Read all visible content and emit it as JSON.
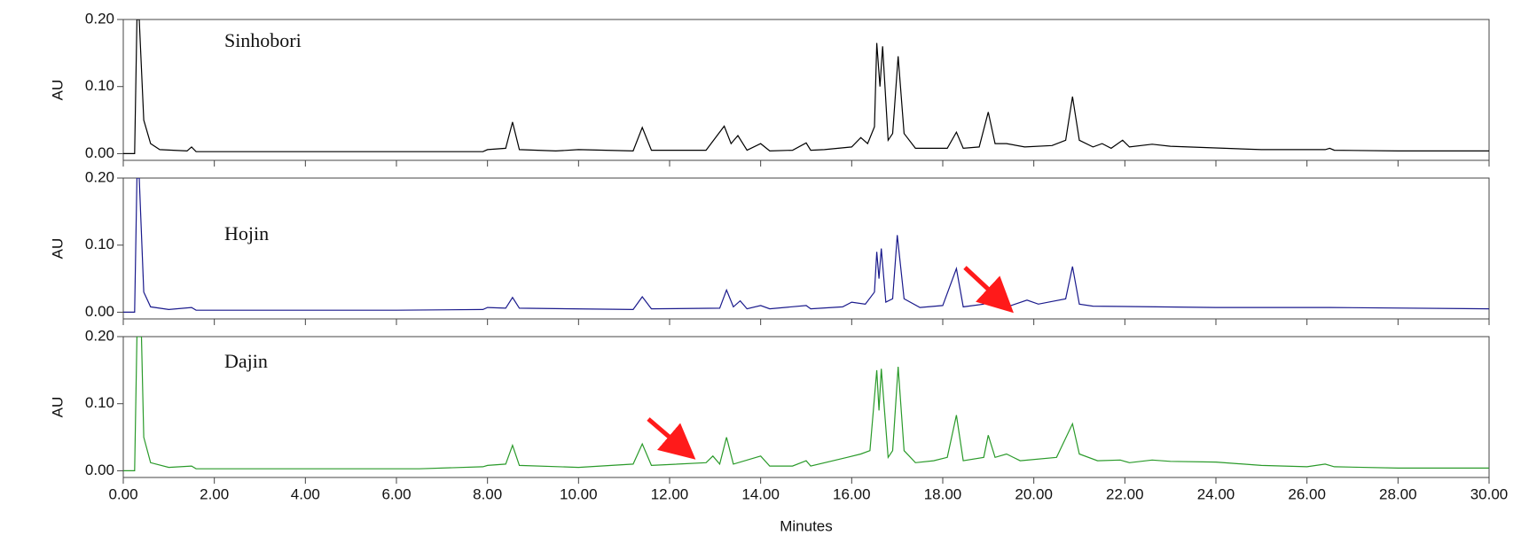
{
  "chart_data": [
    {
      "type": "line",
      "ylabel": "AU",
      "xlim": [
        0,
        30
      ],
      "ylim": [
        -0.01,
        0.2
      ],
      "yticks": [
        {
          "value": 0,
          "label": "0.00"
        },
        {
          "value": 0.1,
          "label": "0.10"
        },
        {
          "value": 0.2,
          "label": "0.20"
        }
      ],
      "x": [
        0,
        0.25,
        0.3,
        0.35,
        0.45,
        0.6,
        0.8,
        1.4,
        1.5,
        1.6,
        7.9,
        8.0,
        8.4,
        8.55,
        8.7,
        9.5,
        10.0,
        11.2,
        11.4,
        11.6,
        12.8,
        13.2,
        13.35,
        13.5,
        13.7,
        14.0,
        14.2,
        14.7,
        15.0,
        15.1,
        15.4,
        16.0,
        16.2,
        16.35,
        16.5,
        16.55,
        16.62,
        16.68,
        16.8,
        16.9,
        17.02,
        17.15,
        17.4,
        18.1,
        18.3,
        18.45,
        18.8,
        19.0,
        19.15,
        19.4,
        19.8,
        20.4,
        20.7,
        20.85,
        21.0,
        21.3,
        21.5,
        21.7,
        21.95,
        22.1,
        22.6,
        23.0,
        25.0,
        26.4,
        26.5,
        26.6,
        28.0,
        30
      ],
      "series": [
        {
          "name": "Sinhobori",
          "color": "#000000",
          "values": [
            0,
            0,
            0.2,
            0.2,
            0.05,
            0.015,
            0.006,
            0.004,
            0.01,
            0.003,
            0.003,
            0.006,
            0.008,
            0.047,
            0.006,
            0.004,
            0.006,
            0.004,
            0.039,
            0.005,
            0.005,
            0.041,
            0.015,
            0.027,
            0.005,
            0.015,
            0.004,
            0.005,
            0.016,
            0.005,
            0.006,
            0.01,
            0.024,
            0.015,
            0.04,
            0.165,
            0.1,
            0.16,
            0.02,
            0.03,
            0.145,
            0.03,
            0.008,
            0.008,
            0.032,
            0.008,
            0.01,
            0.062,
            0.015,
            0.015,
            0.01,
            0.012,
            0.02,
            0.085,
            0.02,
            0.01,
            0.015,
            0.008,
            0.02,
            0.01,
            0.014,
            0.011,
            0.006,
            0.006,
            0.008,
            0.005,
            0.004,
            0.004
          ]
        }
      ]
    },
    {
      "type": "line",
      "ylabel": "AU",
      "xlim": [
        0,
        30
      ],
      "ylim": [
        -0.01,
        0.2
      ],
      "yticks": [
        {
          "value": 0,
          "label": "0.00"
        },
        {
          "value": 0.1,
          "label": "0.10"
        },
        {
          "value": 0.2,
          "label": "0.20"
        }
      ],
      "x": [
        0,
        0.25,
        0.3,
        0.35,
        0.45,
        0.6,
        1.0,
        1.5,
        1.6,
        6.0,
        7.9,
        8.0,
        8.4,
        8.55,
        8.7,
        11.2,
        11.4,
        11.6,
        13.1,
        13.25,
        13.4,
        13.55,
        13.7,
        14.0,
        14.2,
        15.0,
        15.1,
        15.8,
        16.0,
        16.3,
        16.5,
        16.55,
        16.6,
        16.65,
        16.75,
        16.9,
        17.0,
        17.15,
        17.5,
        18.0,
        18.3,
        18.45,
        18.9,
        19.0,
        19.2,
        19.5,
        19.85,
        20.1,
        20.4,
        20.7,
        20.85,
        21.0,
        21.3,
        24.0,
        26.5,
        30
      ],
      "series": [
        {
          "name": "Hojin",
          "color": "#1a1a8c",
          "values": [
            0,
            0,
            0.2,
            0.2,
            0.03,
            0.008,
            0.004,
            0.007,
            0.003,
            0.003,
            0.004,
            0.007,
            0.006,
            0.022,
            0.006,
            0.004,
            0.023,
            0.005,
            0.006,
            0.033,
            0.008,
            0.017,
            0.005,
            0.01,
            0.005,
            0.01,
            0.005,
            0.008,
            0.015,
            0.012,
            0.03,
            0.09,
            0.05,
            0.095,
            0.015,
            0.02,
            0.115,
            0.02,
            0.007,
            0.01,
            0.065,
            0.008,
            0.012,
            0.028,
            0.01,
            0.01,
            0.018,
            0.012,
            0.016,
            0.02,
            0.068,
            0.012,
            0.009,
            0.007,
            0.007,
            0.005
          ]
        }
      ]
    },
    {
      "type": "line",
      "ylabel": "AU",
      "xlabel": "Minutes",
      "xlim": [
        0,
        30
      ],
      "ylim": [
        -0.01,
        0.2
      ],
      "yticks": [
        {
          "value": 0,
          "label": "0.00"
        },
        {
          "value": 0.1,
          "label": "0.10"
        },
        {
          "value": 0.2,
          "label": "0.20"
        }
      ],
      "xticks": [
        {
          "value": 0,
          "label": "0.00"
        },
        {
          "value": 2,
          "label": "2.00"
        },
        {
          "value": 4,
          "label": "4.00"
        },
        {
          "value": 6,
          "label": "6.00"
        },
        {
          "value": 8,
          "label": "8.00"
        },
        {
          "value": 10,
          "label": "10.00"
        },
        {
          "value": 12,
          "label": "12.00"
        },
        {
          "value": 14,
          "label": "14.00"
        },
        {
          "value": 16,
          "label": "16.00"
        },
        {
          "value": 18,
          "label": "18.00"
        },
        {
          "value": 20,
          "label": "20.00"
        },
        {
          "value": 22,
          "label": "22.00"
        },
        {
          "value": 24,
          "label": "24.00"
        },
        {
          "value": 26,
          "label": "26.00"
        },
        {
          "value": 28,
          "label": "28.00"
        },
        {
          "value": 30,
          "label": "30.00"
        }
      ],
      "x": [
        0,
        0.25,
        0.3,
        0.4,
        0.45,
        0.6,
        1.0,
        1.5,
        1.6,
        6.5,
        7.9,
        8.0,
        8.4,
        8.55,
        8.7,
        10.0,
        11.2,
        11.4,
        11.6,
        12.8,
        12.95,
        13.1,
        13.25,
        13.4,
        14.0,
        14.2,
        14.7,
        15.0,
        15.1,
        15.9,
        16.2,
        16.4,
        16.55,
        16.6,
        16.65,
        16.8,
        16.9,
        17.02,
        17.15,
        17.4,
        17.8,
        18.1,
        18.3,
        18.45,
        18.9,
        19.0,
        19.15,
        19.4,
        19.7,
        20.5,
        20.85,
        21.0,
        21.4,
        21.9,
        22.1,
        22.6,
        23.0,
        24.0,
        25.0,
        26.0,
        26.4,
        26.6,
        28,
        30
      ],
      "series": [
        {
          "name": "Dajin",
          "color": "#2a9a2a",
          "values": [
            0,
            0,
            0.2,
            0.2,
            0.05,
            0.012,
            0.005,
            0.007,
            0.003,
            0.003,
            0.006,
            0.008,
            0.01,
            0.038,
            0.008,
            0.005,
            0.01,
            0.04,
            0.008,
            0.012,
            0.022,
            0.01,
            0.05,
            0.01,
            0.022,
            0.007,
            0.007,
            0.015,
            0.007,
            0.02,
            0.025,
            0.03,
            0.15,
            0.09,
            0.152,
            0.02,
            0.03,
            0.155,
            0.03,
            0.012,
            0.015,
            0.02,
            0.083,
            0.015,
            0.02,
            0.053,
            0.02,
            0.025,
            0.015,
            0.02,
            0.07,
            0.025,
            0.015,
            0.016,
            0.012,
            0.016,
            0.014,
            0.013,
            0.008,
            0.006,
            0.01,
            0.006,
            0.004,
            0.004
          ]
        }
      ]
    }
  ]
}
